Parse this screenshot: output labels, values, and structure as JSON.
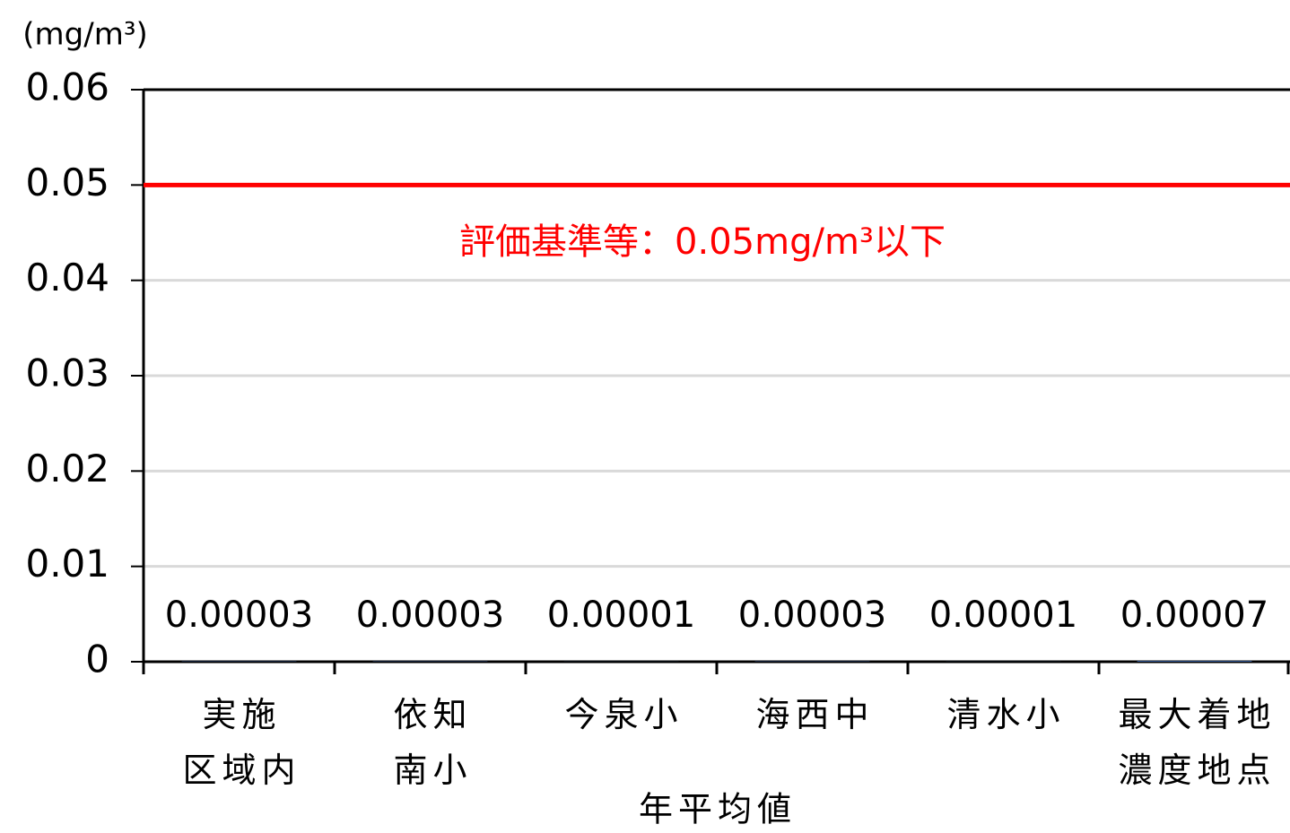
{
  "chart_data": {
    "type": "bar",
    "y_label": "(mg/m³)",
    "x_label": "年平均値",
    "categories": [
      "実施\n区域内",
      "依知\n南小",
      "今泉小",
      "海西中",
      "清水小",
      "最大着地\n濃度地点"
    ],
    "values": [
      3e-05,
      3e-05,
      1e-05,
      3e-05,
      1e-05,
      7e-05
    ],
    "value_labels": [
      "0.00003",
      "0.00003",
      "0.00001",
      "0.00003",
      "0.00001",
      "0.00007"
    ],
    "ylim": [
      0,
      0.06
    ],
    "yticks": [
      0,
      0.01,
      0.02,
      0.03,
      0.04,
      0.05,
      0.06
    ],
    "grid": true,
    "reference_line": {
      "value": 0.05,
      "label": "評価基準等：0.05mg/m³以下",
      "color": "#ff0000"
    }
  }
}
